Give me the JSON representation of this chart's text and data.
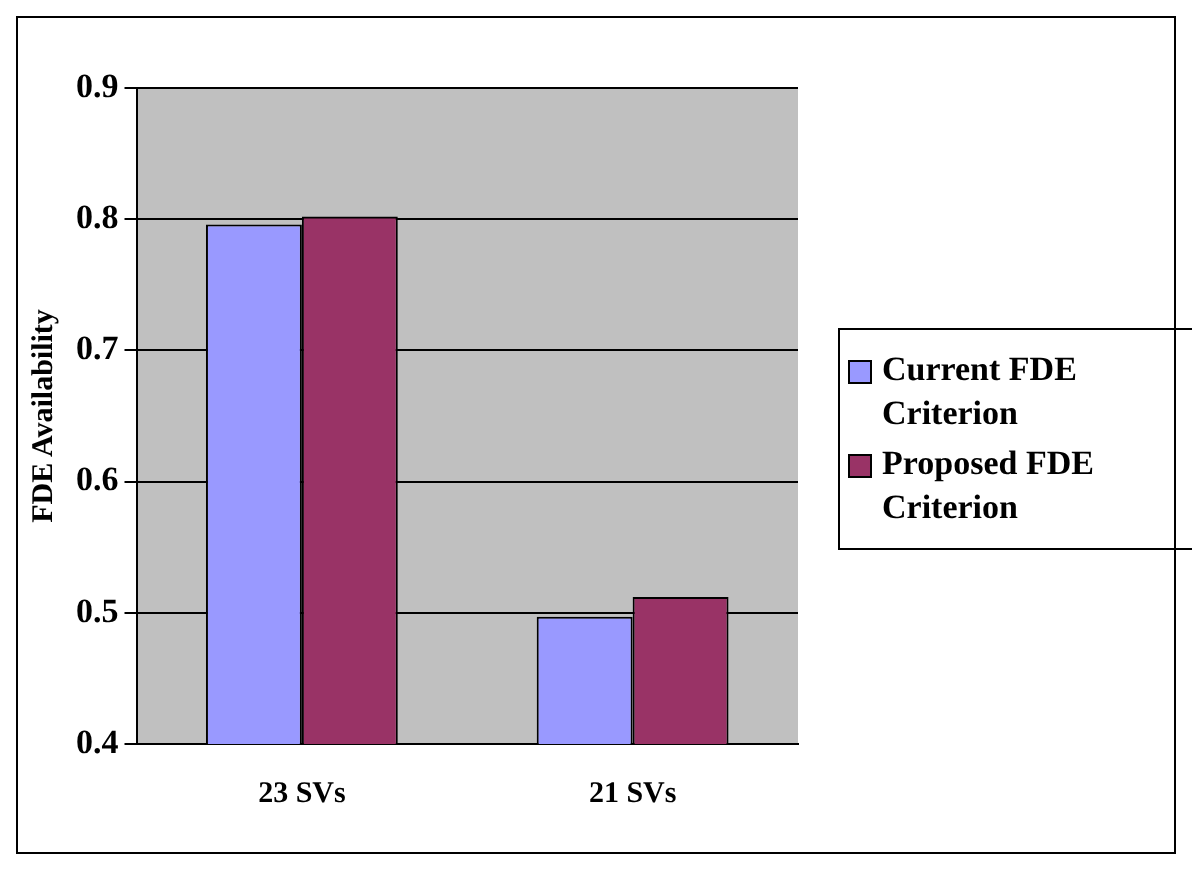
{
  "chart_data": {
    "type": "bar",
    "ylabel": "FDE Availability",
    "categories": [
      "23 SVs",
      "21 SVs"
    ],
    "series": [
      {
        "name": "Current FDE Criterion",
        "color": "#9999ff",
        "values": [
          0.796,
          0.497
        ]
      },
      {
        "name": "Proposed FDE Criterion",
        "color": "#993366",
        "values": [
          0.802,
          0.512
        ]
      }
    ],
    "ylim": [
      0.4,
      0.9
    ],
    "yticks": [
      0.4,
      0.5,
      0.6,
      0.7,
      0.8,
      0.9
    ],
    "grid": "y",
    "legend": "right"
  }
}
